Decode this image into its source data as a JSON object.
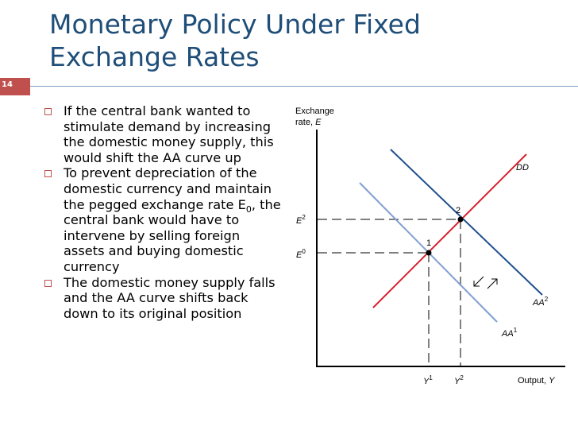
{
  "slide": {
    "title_line1": "Monetary Policy Under Fixed",
    "title_line2": "Exchange Rates",
    "number": "14",
    "accent_color": "#c0504d",
    "title_color": "#1f4e79"
  },
  "bullets": [
    {
      "text": "If the central bank wanted to stimulate demand by increasing the domestic money supply, this would shift the AA curve up"
    },
    {
      "pre": "To prevent depreciation of the domestic currency and maintain the pegged exchange rate E",
      "sub": "0",
      "post": ", the central bank would have to intervene by selling foreign assets and buying domestic currency"
    },
    {
      "text": "The domestic money supply falls and the AA curve shifts back down to its original position"
    }
  ],
  "graph": {
    "y_axis_label_line1": "Exchange",
    "y_axis_label_line2": "rate, ",
    "y_axis_label_var": "E",
    "x_axis_label": "Output, ",
    "x_axis_label_var": "Y",
    "E2": "E",
    "E2_sup": "2",
    "E0": "E",
    "E0_sup": "0",
    "Y1": "Y",
    "Y1_sup": "1",
    "Y2": "Y",
    "Y2_sup": "2",
    "curve_DD": "DD",
    "curve_AA2": "AA",
    "curve_AA2_sup": "2",
    "curve_AA1": "AA",
    "curve_AA1_sup": "1",
    "point1": "1",
    "point2": "2",
    "colors": {
      "DD": "#1f4e8c",
      "AA2": "#d62030",
      "AA1": "#7f9fd0"
    }
  }
}
